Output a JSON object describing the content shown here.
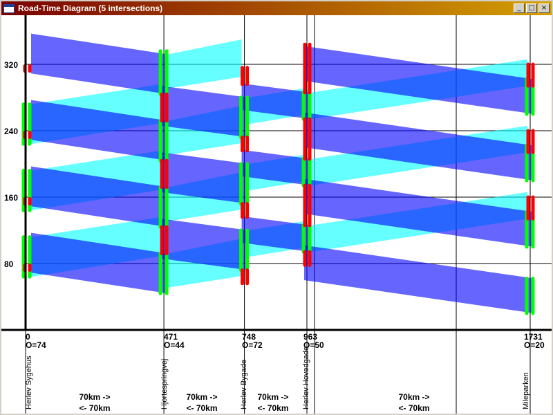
{
  "window": {
    "title": "Road-Time Diagram (5 intersections)",
    "controls": [
      {
        "name": "minimize",
        "glyph": "_"
      },
      {
        "name": "maximize",
        "glyph": "□"
      },
      {
        "name": "close",
        "glyph": "×"
      }
    ]
  },
  "chart_data": {
    "type": "road-time diagram",
    "title": "",
    "xlabel": "",
    "ylabel": "",
    "xlim": [
      0,
      1900
    ],
    "ylim": [
      0,
      375
    ],
    "grid": true,
    "y_ticks": [
      80,
      160,
      240,
      320
    ],
    "cycle_time": 80,
    "colors": {
      "band_forward": "#00ffff",
      "band_backward": "#0000ff",
      "green": "#00ff00",
      "red": "#ff0000",
      "axis": "#000000",
      "grid": "#000000"
    },
    "intersections": [
      {
        "name": "Herlev Sygehus",
        "position": 0,
        "position_label": "0",
        "offset_label": "O=74",
        "offset": 74
      },
      {
        "name": "Hjortespringvej",
        "position": 471,
        "position_label": "471",
        "offset_label": "O=44",
        "offset": 44
      },
      {
        "name": "Herlev Bygade",
        "position": 748,
        "position_label": "748",
        "offset_label": "O=72",
        "offset": 72
      },
      {
        "name": "Herlev Hovedgade",
        "position": 963,
        "position_label": "963",
        "offset_label": "O=50",
        "offset": 50
      },
      {
        "name": "Mileparken",
        "position": 1731,
        "position_label": "1731",
        "offset_label": "O=20",
        "offset": 20
      }
    ],
    "segments": [
      {
        "forward": "70km ->",
        "backward": "<- 70km"
      },
      {
        "forward": "70km ->",
        "backward": "<- 70km"
      },
      {
        "forward": "70km ->",
        "backward": "<- 70km"
      },
      {
        "forward": "70km ->",
        "backward": "<- 70km"
      }
    ],
    "signals": [
      {
        "intersection": 0,
        "green": [
          [
            64,
            112
          ],
          [
            144,
            192
          ],
          [
            224,
            272
          ]
        ],
        "red": [
          [
            72,
            78
          ],
          [
            152,
            158
          ],
          [
            232,
            238
          ],
          [
            312,
            318
          ]
        ]
      },
      {
        "intersection": 1,
        "green": [
          [
            44,
            92
          ],
          [
            124,
            172
          ],
          [
            204,
            252
          ],
          [
            284,
            336
          ]
        ],
        "red": [
          [
            92,
            124
          ],
          [
            172,
            204
          ],
          [
            252,
            284
          ]
        ]
      },
      {
        "intersection": 2,
        "green": [
          [
            72,
            120
          ],
          [
            152,
            200
          ],
          [
            232,
            280
          ]
        ],
        "red": [
          [
            56,
            72
          ],
          [
            136,
            152
          ],
          [
            216,
            232
          ],
          [
            296,
            316
          ]
        ]
      },
      {
        "intersection": 3,
        "green": [
          [
            94,
            126
          ],
          [
            174,
            206
          ],
          [
            254,
            286
          ]
        ],
        "red": [
          [
            78,
            94
          ],
          [
            126,
            174
          ],
          [
            206,
            254
          ],
          [
            286,
            344
          ]
        ]
      },
      {
        "intersection": 4,
        "green": [
          [
            20,
            62
          ],
          [
            100,
            142
          ],
          [
            180,
            222
          ],
          [
            260,
            302
          ]
        ],
        "red": [
          [
            134,
            160
          ],
          [
            214,
            240
          ],
          [
            294,
            320
          ]
        ]
      }
    ],
    "bands_forward": [
      {
        "from": 1,
        "to": 2,
        "t_from": [
          51,
          92
        ],
        "t_to": [
          65,
          110
        ],
        "cycles": 4
      },
      {
        "from": 0,
        "to": 1,
        "t_from": [
          64,
          112
        ],
        "t_to": [
          89,
          136
        ],
        "cycles": 3
      },
      {
        "from": 2,
        "to": 3,
        "t_from": [
          88,
          120
        ],
        "t_to": [
          99,
          131
        ],
        "cycles": 3
      },
      {
        "from": 3,
        "to": 4,
        "t_from": [
          94,
          126
        ],
        "t_to": [
          134,
          166
        ],
        "cycles": 3
      }
    ],
    "bands_backward": [
      {
        "from": 1,
        "to": 0,
        "t_from": [
          44,
          92
        ],
        "t_to": [
          69,
          117
        ],
        "cycles": 4
      },
      {
        "from": 4,
        "to": 3,
        "t_from": [
          20,
          62
        ],
        "t_to": [
          60,
          102
        ],
        "cycles": 4
      },
      {
        "from": 3,
        "to": 2,
        "t_from": [
          94,
          126
        ],
        "t_to": [
          105,
          137
        ],
        "cycles": 3
      },
      {
        "from": 2,
        "to": 1,
        "t_from": [
          72,
          120
        ],
        "t_to": [
          86,
          134
        ],
        "cycles": 3
      }
    ]
  }
}
